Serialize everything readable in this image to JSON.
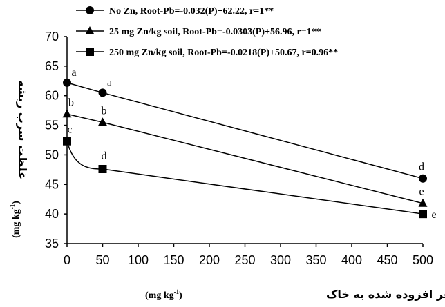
{
  "chart_data": {
    "type": "line",
    "x": [
      0,
      50,
      500
    ],
    "series": [
      {
        "name": "No Zn, Root-Pb=-0.032(P)+62.22, r=1**",
        "marker": "circle",
        "values": [
          62.2,
          60.5,
          46.0
        ],
        "letters": [
          "a",
          "a",
          "d"
        ]
      },
      {
        "name": "25 mg Zn/kg soil, Root-Pb=-0.0303(P)+56.96, r=1**",
        "marker": "triangle",
        "values": [
          56.9,
          55.5,
          41.8
        ],
        "letters": [
          "b",
          "b",
          "e"
        ]
      },
      {
        "name": "250 mg Zn/kg soil, Root-Pb=-0.0218(P)+50.67, r=0.96**",
        "marker": "square",
        "values": [
          52.3,
          47.6,
          40.0
        ],
        "letters": [
          "c",
          "d",
          "e"
        ]
      }
    ],
    "xlim": [
      0,
      500
    ],
    "ylim": [
      35,
      70
    ],
    "xticks": [
      0,
      50,
      100,
      150,
      200,
      250,
      300,
      350,
      400,
      450,
      500
    ],
    "yticks": [
      35,
      40,
      45,
      50,
      55,
      60,
      65,
      70
    ],
    "xlabel": "فسفر افزوده شده به خاک",
    "xlabel_unit": "(mg kg",
    "ylabel": "غلظت سرب ریشه",
    "ylabel_unit": "(mg kg",
    "unit_superscript": "-1",
    "unit_close": ")",
    "legend_position": "top-left",
    "grid": false,
    "colors": {
      "line": "#000000",
      "background": "#ffffff"
    }
  }
}
